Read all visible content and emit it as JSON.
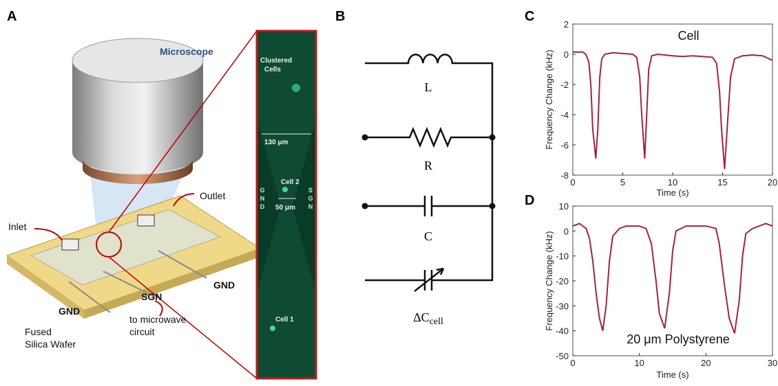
{
  "panel_labels": [
    "A",
    "B",
    "C",
    "D"
  ],
  "illustration": {
    "microscope": "Microscope",
    "outlet": "Outlet",
    "inlet": "Inlet",
    "gnd_right": "GND",
    "sgn": "SGN",
    "gnd_left": "GND",
    "wafer": [
      "Fused",
      "Silica Wafer"
    ],
    "to_circuit": [
      "to microwave",
      "circuit"
    ],
    "inset": {
      "clustered": [
        "Clustered",
        "Cells"
      ],
      "width": "130 μm",
      "cell2": "Cell 2",
      "gap": "50 μm",
      "gnd": "GND",
      "sgn": "SGN",
      "cell1": "Cell 1"
    }
  },
  "circuit": {
    "L": "L",
    "R": "R",
    "C": "C",
    "delta_c": "ΔC",
    "delta_c_sub": "cell"
  },
  "chart_data": [
    {
      "type": "line",
      "annotation": "Cell",
      "x_label": "Time (s)",
      "y_label": "Frequency Change (kHz)",
      "x": [
        0,
        0.5,
        1,
        1.3,
        1.6,
        1.8,
        2.0,
        2.3,
        2.5,
        2.7,
        2.9,
        3.2,
        4,
        5,
        6,
        6.4,
        6.7,
        6.9,
        7.2,
        7.4,
        7.6,
        7.9,
        8.5,
        10,
        11,
        12,
        13,
        14,
        14.4,
        14.7,
        14.9,
        15.2,
        15.5,
        15.8,
        16.2,
        17,
        18,
        19,
        20
      ],
      "series": [
        {
          "color": "#a3223f",
          "values": [
            0.15,
            0.15,
            0.15,
            0.0,
            -0.5,
            -2,
            -5,
            -6.9,
            -5,
            -1.5,
            -0.3,
            0.0,
            0.1,
            0.05,
            0.0,
            -0.2,
            -1.5,
            -4,
            -6.9,
            -4,
            -1,
            -0.1,
            0.0,
            -0.1,
            -0.15,
            -0.1,
            -0.15,
            -0.2,
            -0.6,
            -2.5,
            -5,
            -7.6,
            -4.5,
            -1.5,
            -0.3,
            -0.1,
            -0.05,
            -0.1,
            -0.4
          ]
        }
      ],
      "xlim": [
        0,
        20
      ],
      "ylim": [
        -8,
        2
      ],
      "xticks": [
        0,
        5,
        10,
        15,
        20
      ],
      "yticks": [
        -8,
        -6,
        -4,
        -2,
        0,
        2
      ]
    },
    {
      "type": "line",
      "annotation": "20 μm Polystyrene",
      "x_label": "Time (s)",
      "y_label": "Frequency Change (kHz)",
      "x": [
        0,
        1,
        2,
        2.5,
        3,
        3.5,
        4,
        4.5,
        5,
        5.5,
        6,
        7,
        8,
        10,
        11,
        11.8,
        12.5,
        13,
        13.8,
        14.5,
        15,
        15.5,
        17,
        20,
        21.5,
        22,
        22.8,
        23.5,
        24.3,
        25,
        25.5,
        26,
        27,
        29,
        30
      ],
      "series": [
        {
          "color": "#a3223f",
          "values": [
            2,
            3,
            1,
            -3,
            -12,
            -25,
            -35,
            -40,
            -30,
            -12,
            -2,
            1,
            2,
            2,
            1,
            -5,
            -20,
            -33,
            -39,
            -25,
            -8,
            0,
            2,
            2,
            1,
            -5,
            -22,
            -35,
            -41,
            -28,
            -10,
            -1,
            1,
            3,
            2
          ]
        }
      ],
      "xlim": [
        0,
        30
      ],
      "ylim": [
        -50,
        10
      ],
      "xticks": [
        0,
        10,
        20,
        30
      ],
      "yticks": [
        -50,
        -40,
        -30,
        -20,
        -10,
        0,
        10
      ]
    }
  ]
}
